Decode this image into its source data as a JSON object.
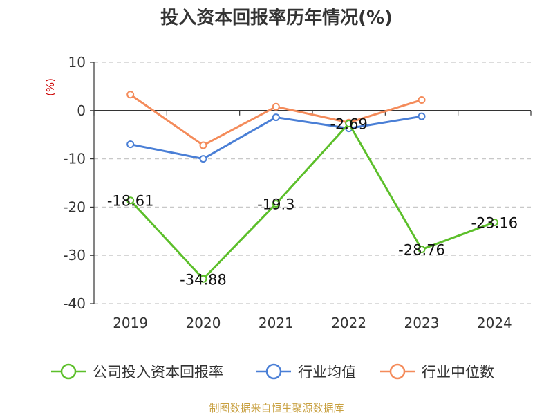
{
  "chart_data": {
    "type": "line",
    "title": "投入资本回报率历年情况(%)",
    "ylabel": "(%)",
    "xlabel": "",
    "categories": [
      "2019",
      "2020",
      "2021",
      "2022",
      "2023",
      "2024"
    ],
    "ylim": [
      -40,
      10
    ],
    "yticks": [
      10,
      0,
      -10,
      -20,
      -30,
      -40
    ],
    "grid": true,
    "legend_position": "bottom",
    "series": [
      {
        "name": "公司投入资本回报率",
        "color": "#5cbf2a",
        "values": [
          -18.61,
          -34.88,
          -19.3,
          -2.69,
          -28.76,
          -23.16
        ],
        "labels": [
          "-18.61",
          "-34.88",
          "-19.3",
          "-2.69",
          "-28.76",
          "-23.16"
        ]
      },
      {
        "name": "行业均值",
        "color": "#4a7fd6",
        "values": [
          -7.0,
          -10.0,
          -1.4,
          -3.7,
          -1.2,
          null
        ]
      },
      {
        "name": "行业中位数",
        "color": "#f48b5a",
        "values": [
          3.3,
          -7.2,
          0.8,
          -2.5,
          2.2,
          null
        ]
      }
    ]
  },
  "source": "制图数据来自恒生聚源数据库"
}
